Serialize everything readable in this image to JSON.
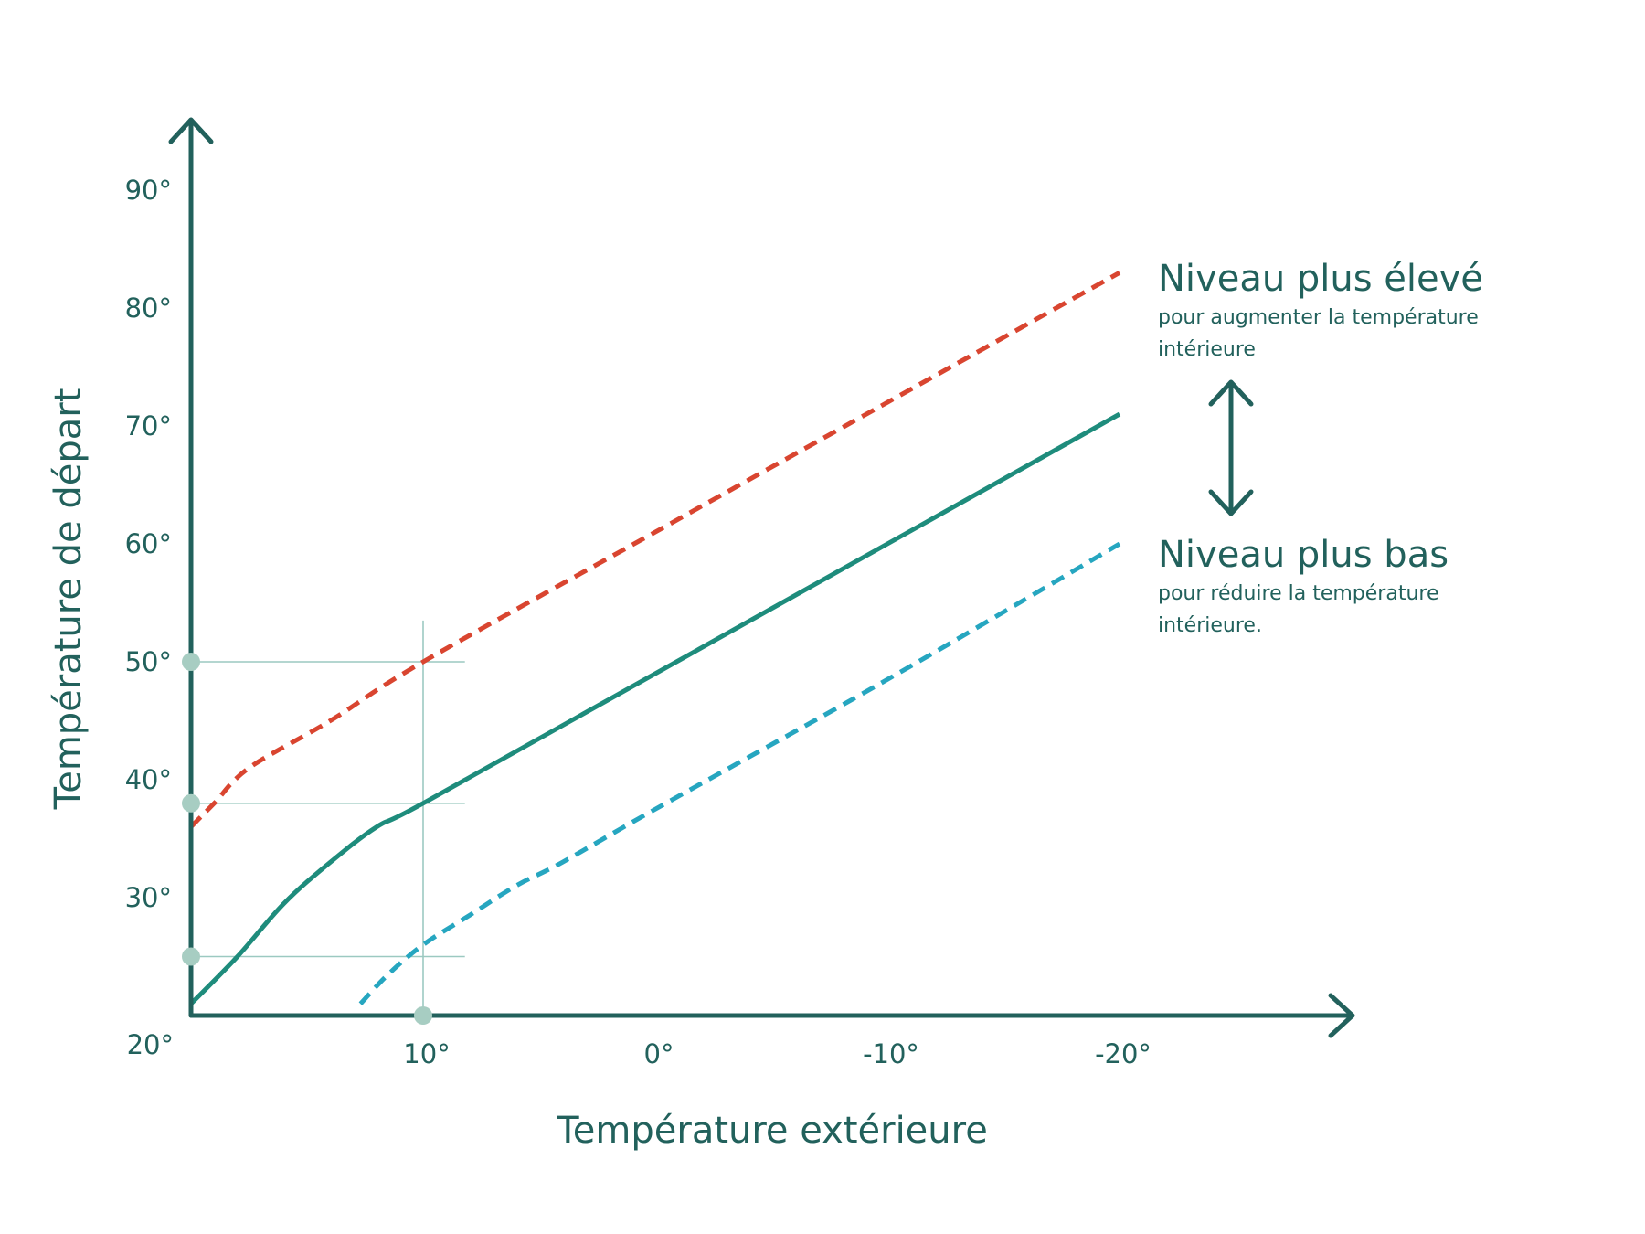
{
  "chart_data": {
    "type": "line",
    "xlabel": "Température extérieure",
    "ylabel": "Température de départ",
    "x_reversed": true,
    "xlim": [
      20,
      -25
    ],
    "ylim": [
      20,
      90
    ],
    "x_ticks": [
      {
        "value": 20,
        "label": "20°"
      },
      {
        "value": 10,
        "label": "10°"
      },
      {
        "value": 0,
        "label": "0°"
      },
      {
        "value": -10,
        "label": "-10°"
      },
      {
        "value": -20,
        "label": "-20°"
      }
    ],
    "y_ticks": [
      {
        "value": 30,
        "label": "30°"
      },
      {
        "value": 40,
        "label": "40°"
      },
      {
        "value": 50,
        "label": "50°"
      },
      {
        "value": 60,
        "label": "60°"
      },
      {
        "value": 70,
        "label": "70°"
      },
      {
        "value": 80,
        "label": "80°"
      },
      {
        "value": 90,
        "label": "90°"
      }
    ],
    "series": [
      {
        "color": "#d94530",
        "style": "dashed",
        "points": [
          [
            20,
            36
          ],
          [
            19,
            38
          ],
          [
            17.5,
            41
          ],
          [
            14,
            45
          ],
          [
            10,
            50
          ],
          [
            0,
            61
          ],
          [
            -10,
            72
          ],
          [
            -20,
            83
          ]
        ]
      },
      {
        "color": "#1e8c7c",
        "style": "solid",
        "points": [
          [
            20,
            21
          ],
          [
            18,
            25
          ],
          [
            16,
            29.5
          ],
          [
            14,
            33
          ],
          [
            12,
            36
          ],
          [
            10,
            38
          ],
          [
            0,
            49
          ],
          [
            -10,
            60
          ],
          [
            -20,
            71
          ]
        ]
      },
      {
        "color": "#26a6c0",
        "style": "dashed",
        "points": [
          [
            12.7,
            21
          ],
          [
            11.5,
            23.5
          ],
          [
            10,
            26
          ],
          [
            8,
            28.5
          ],
          [
            6,
            31
          ],
          [
            4,
            33
          ],
          [
            0,
            37.5
          ],
          [
            -10,
            48.5
          ],
          [
            -20,
            60
          ]
        ]
      }
    ],
    "reference_lines": {
      "x": 10,
      "y": [
        50,
        38,
        25
      ],
      "y_extent_x": 8.2,
      "x_extent_y": 53.5,
      "color": "#9cc9c1"
    },
    "markers": [
      {
        "x": 20,
        "y": 50
      },
      {
        "x": 20,
        "y": 38
      },
      {
        "x": 20,
        "y": 25
      },
      {
        "x": 10,
        "y": 20
      }
    ],
    "marker_color": "#a7cdc2",
    "annotations": [
      {
        "id": "high",
        "title": "Niveau plus élevé",
        "subtitle": [
          "pour augmenter la température",
          "intérieure"
        ]
      },
      {
        "id": "low",
        "title": "Niveau plus bas",
        "subtitle": [
          "pour réduire la température",
          "intérieure."
        ]
      }
    ],
    "double_arrow_icon": "vertical-double-arrow-icon",
    "axis_color": "#22615c",
    "legend": "none",
    "grid": false
  }
}
